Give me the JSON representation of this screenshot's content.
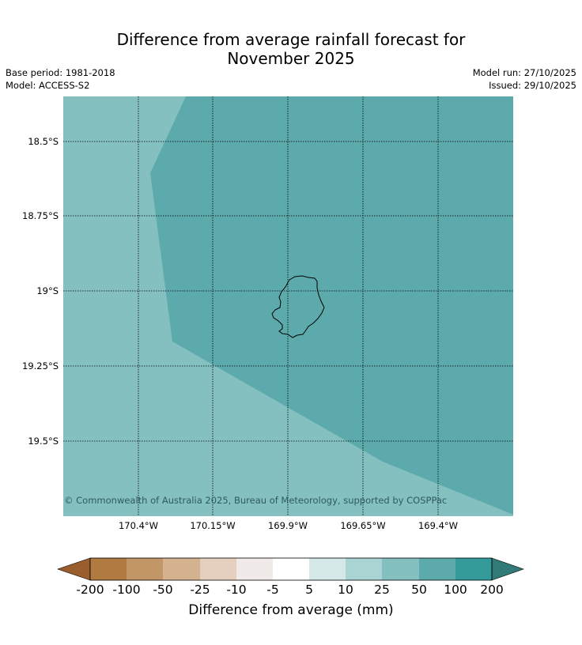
{
  "title": {
    "line1": "Difference from average rainfall forecast for",
    "line2": "November 2025"
  },
  "meta": {
    "base_period": "Base period: 1981-2018",
    "model": "Model: ACCESS-S2",
    "model_run": "Model run: 27/10/2025",
    "issued": "Issued: 29/10/2025"
  },
  "map": {
    "region": "Niue",
    "latitude_labels": [
      "18.5°S",
      "18.75°S",
      "19°S",
      "19.25°S",
      "19.5°S"
    ],
    "longitude_labels": [
      "170.4°W",
      "170.15°W",
      "169.9°W",
      "169.65°W",
      "169.4°W"
    ],
    "copyright": "© Commonwealth of Australia 2025, Bureau of Meteorology, supported by COSPPac",
    "colors": {
      "category_25_50": "#83c0bf",
      "category_50_100": "#5caaac",
      "grid": "#000000",
      "coastline": "#000000"
    }
  },
  "colorbar": {
    "label": "Difference from average (mm)",
    "ticks": [
      "-200",
      "-100",
      "-50",
      "-25",
      "-10",
      "-5",
      "5",
      "10",
      "25",
      "50",
      "100",
      "200"
    ],
    "colors": {
      "extend_low": "#9a5e2c",
      "extend_high": "#327a78",
      "bins": [
        "#b07a40",
        "#c29666",
        "#d4b290",
        "#e5d0bf",
        "#f0ebe8",
        "#ffffff",
        "#d5e9e8",
        "#aad4d3",
        "#83c0bf",
        "#5caaac",
        "#349a9a"
      ]
    }
  }
}
